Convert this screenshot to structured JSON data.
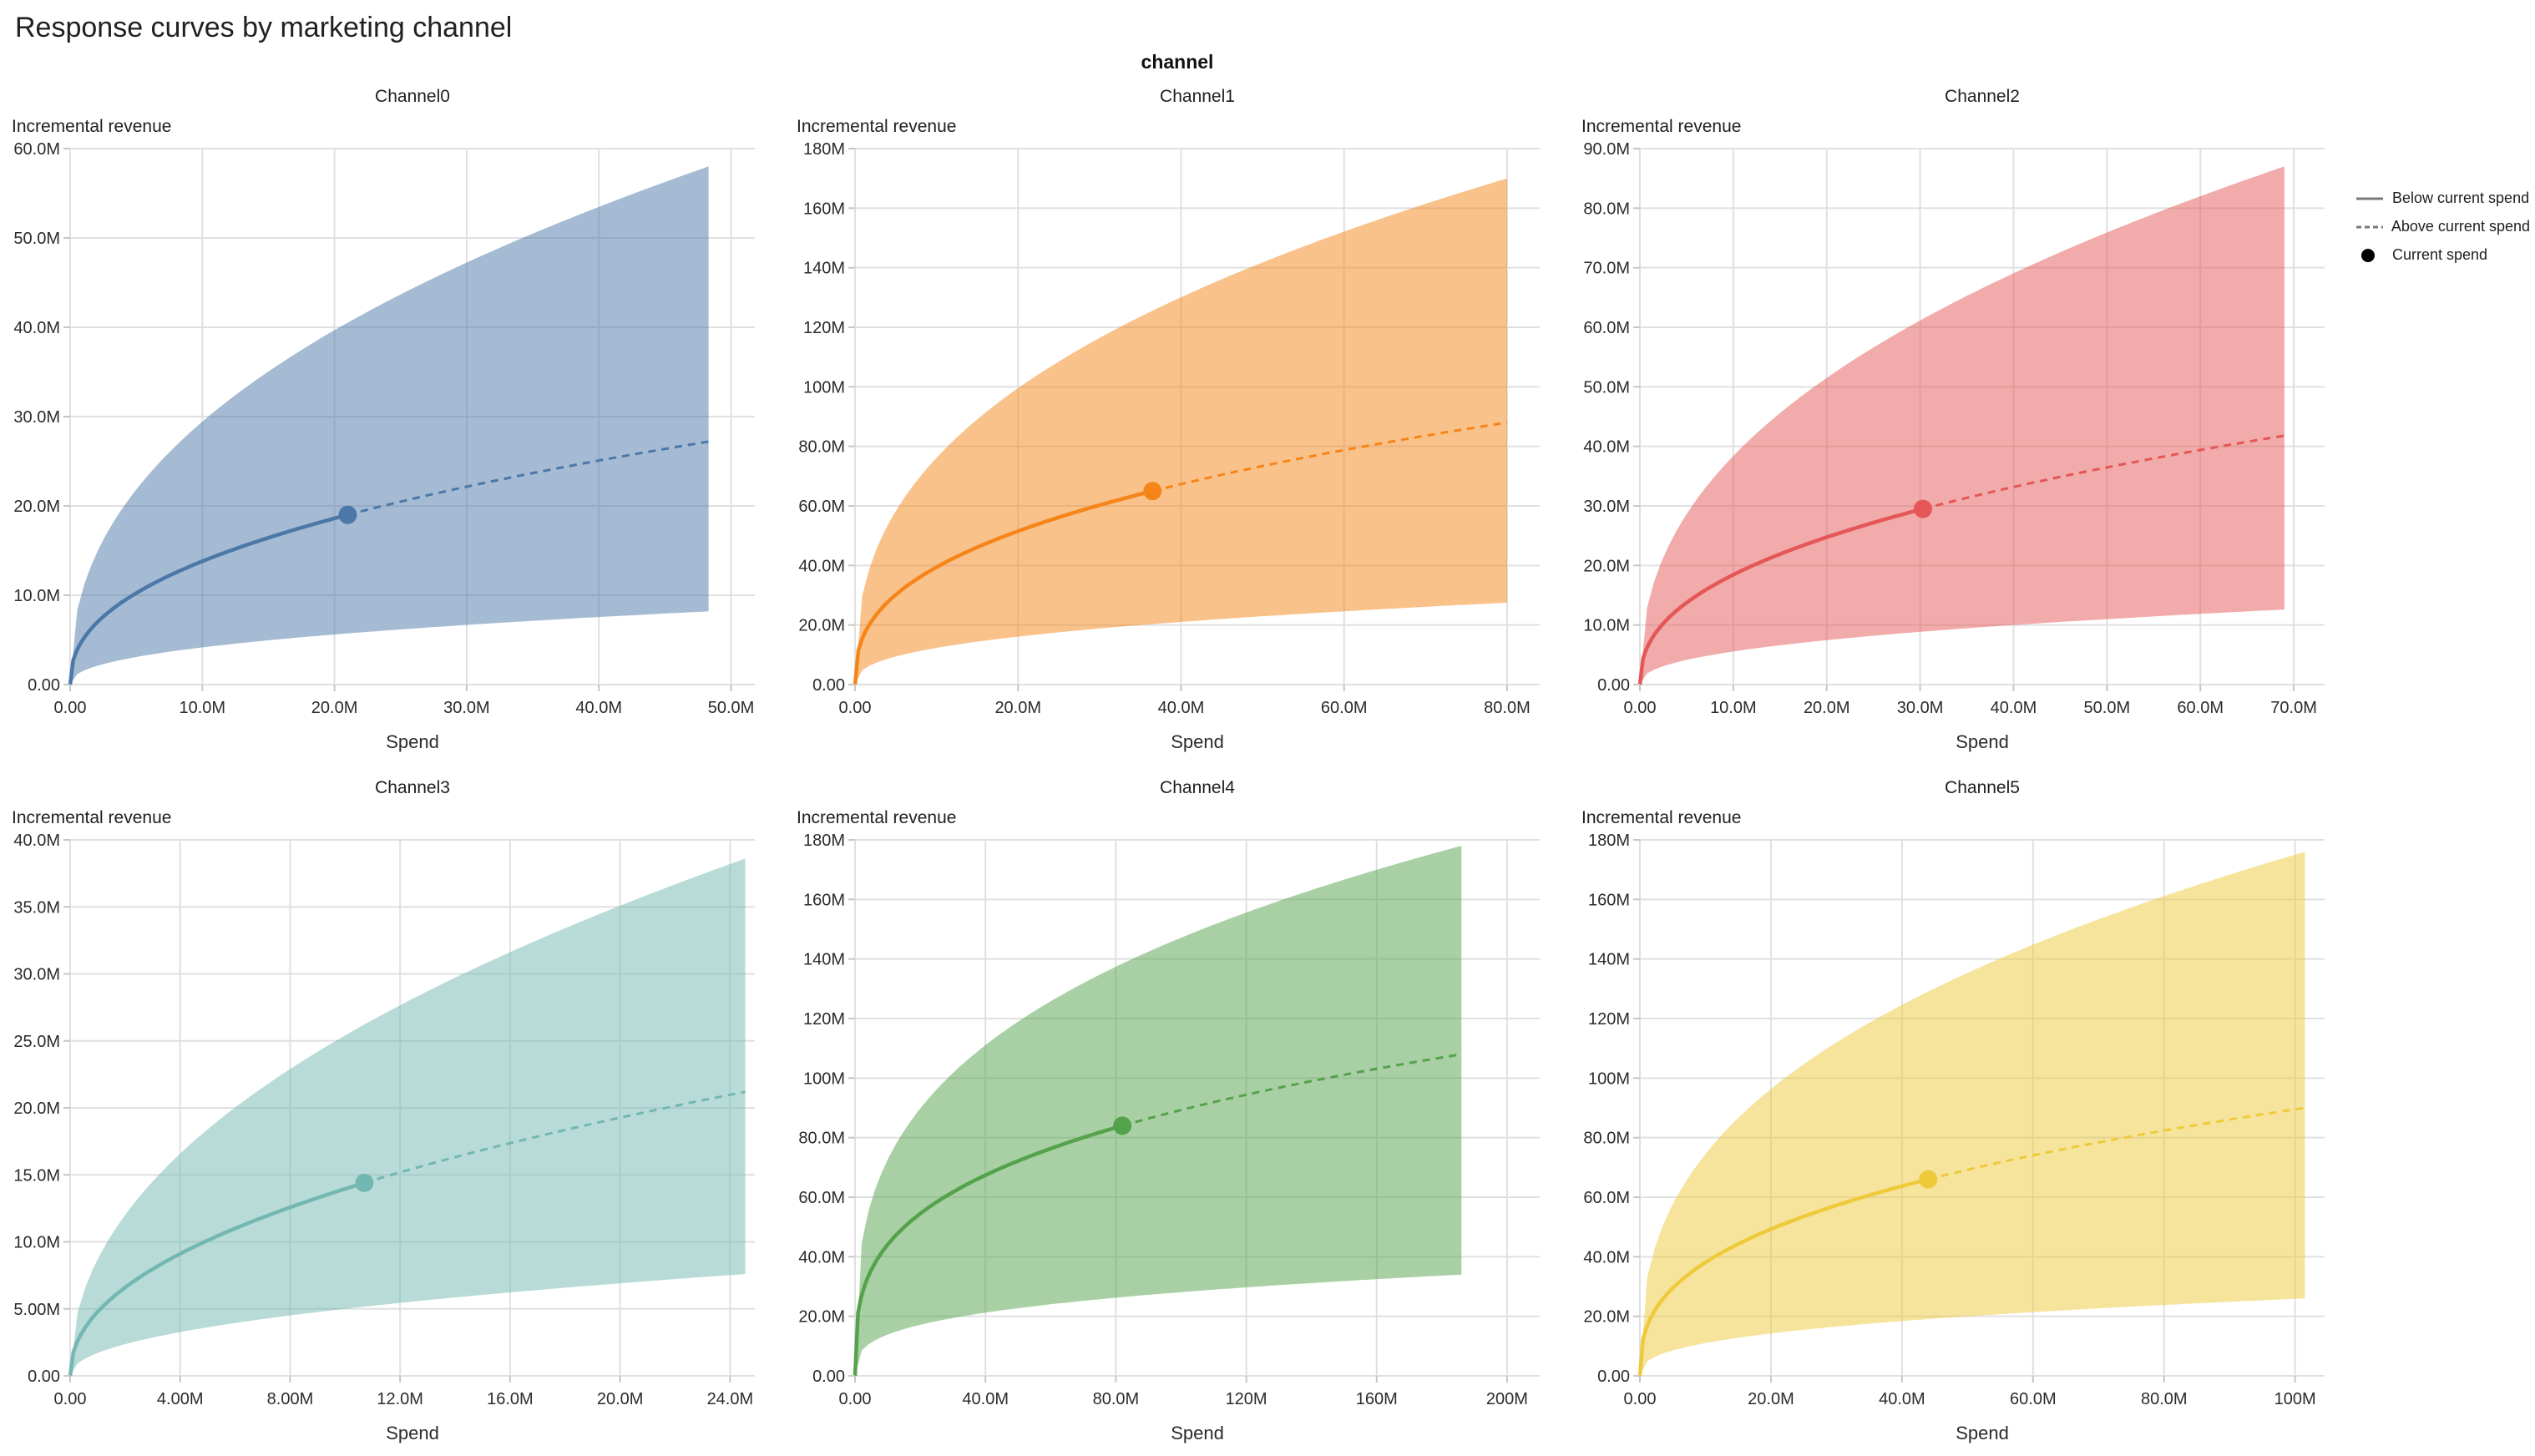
{
  "page": {
    "title": "Response curves by marketing channel",
    "facet_header": "channel"
  },
  "axes": {
    "x_label": "Spend",
    "y_label": "Incremental revenue"
  },
  "legend": {
    "items": [
      {
        "label": "Below current spend",
        "symbol": "solid-line"
      },
      {
        "label": "Above current spend",
        "symbol": "dashed-line"
      },
      {
        "label": "Current spend",
        "symbol": "dot"
      }
    ],
    "symbol_color": "#7a7a7a",
    "dot_color": "#000000"
  },
  "style": {
    "band_opacity": 0.5
  },
  "chart_data": [
    {
      "type": "line",
      "title": "Channel0",
      "color": "#4c78a8",
      "xlabel": "Spend",
      "ylabel": "Incremental revenue",
      "units": "millions",
      "curve_model": "power",
      "xlim": [
        0,
        51.8
      ],
      "ylim": [
        0,
        60
      ],
      "x_ticks": {
        "values": [
          0,
          10,
          20,
          30,
          40,
          50
        ],
        "labels": [
          "0.00",
          "10.0M",
          "20.0M",
          "30.0M",
          "40.0M",
          "50.0M"
        ]
      },
      "y_ticks": {
        "values": [
          0,
          10,
          20,
          30,
          40,
          50,
          60
        ],
        "labels": [
          "0.00",
          "10.0M",
          "20.0M",
          "30.0M",
          "40.0M",
          "50.0M",
          "60.0M"
        ]
      },
      "current_spend": {
        "x": 21,
        "y": 19
      },
      "curve_end": {
        "x": 48.3,
        "y": 27.2
      },
      "band": {
        "upper_end": 58,
        "lower_end": 8.2
      }
    },
    {
      "type": "line",
      "title": "Channel1",
      "color": "#f58518",
      "xlabel": "Spend",
      "ylabel": "Incremental revenue",
      "units": "millions",
      "curve_model": "power",
      "xlim": [
        0,
        84
      ],
      "ylim": [
        0,
        180
      ],
      "x_ticks": {
        "values": [
          0,
          20,
          40,
          60,
          80
        ],
        "labels": [
          "0.00",
          "20.0M",
          "40.0M",
          "60.0M",
          "80.0M"
        ]
      },
      "y_ticks": {
        "values": [
          0,
          20,
          40,
          60,
          80,
          100,
          120,
          140,
          160,
          180
        ],
        "labels": [
          "0.00",
          "20.0M",
          "40.0M",
          "60.0M",
          "80.0M",
          "100M",
          "120M",
          "140M",
          "160M",
          "180M"
        ]
      },
      "current_spend": {
        "x": 36.5,
        "y": 65
      },
      "curve_end": {
        "x": 80,
        "y": 88
      },
      "band": {
        "upper_end": 170,
        "lower_end": 27.5
      }
    },
    {
      "type": "line",
      "title": "Channel2",
      "color": "#e45756",
      "xlabel": "Spend",
      "ylabel": "Incremental revenue",
      "units": "millions",
      "curve_model": "power",
      "xlim": [
        0,
        73.3
      ],
      "ylim": [
        0,
        90
      ],
      "x_ticks": {
        "values": [
          0,
          10,
          20,
          30,
          40,
          50,
          60,
          70
        ],
        "labels": [
          "0.00",
          "10.0M",
          "20.0M",
          "30.0M",
          "40.0M",
          "50.0M",
          "60.0M",
          "70.0M"
        ]
      },
      "y_ticks": {
        "values": [
          0,
          10,
          20,
          30,
          40,
          50,
          60,
          70,
          80,
          90
        ],
        "labels": [
          "0.00",
          "10.0M",
          "20.0M",
          "30.0M",
          "40.0M",
          "50.0M",
          "60.0M",
          "70.0M",
          "80.0M",
          "90.0M"
        ]
      },
      "current_spend": {
        "x": 30.3,
        "y": 29.5
      },
      "curve_end": {
        "x": 69,
        "y": 41.8
      },
      "band": {
        "upper_end": 87,
        "lower_end": 12.6
      }
    },
    {
      "type": "line",
      "title": "Channel3",
      "color": "#72b7b2",
      "xlabel": "Spend",
      "ylabel": "Incremental revenue",
      "units": "millions",
      "curve_model": "power",
      "xlim": [
        0,
        24.9
      ],
      "ylim": [
        0,
        40
      ],
      "x_ticks": {
        "values": [
          0,
          4,
          8,
          12,
          16,
          20,
          24
        ],
        "labels": [
          "0.00",
          "4.00M",
          "8.00M",
          "12.0M",
          "16.0M",
          "20.0M",
          "24.0M"
        ]
      },
      "y_ticks": {
        "values": [
          0,
          5,
          10,
          15,
          20,
          25,
          30,
          35,
          40
        ],
        "labels": [
          "0.00",
          "5.00M",
          "10.0M",
          "15.0M",
          "20.0M",
          "25.0M",
          "30.0M",
          "35.0M",
          "40.0M"
        ]
      },
      "current_spend": {
        "x": 10.7,
        "y": 14.4
      },
      "curve_end": {
        "x": 24.55,
        "y": 21.2
      },
      "band": {
        "upper_end": 38.6,
        "lower_end": 7.6
      }
    },
    {
      "type": "line",
      "title": "Channel4",
      "color": "#54a24b",
      "xlabel": "Spend",
      "ylabel": "Incremental revenue",
      "units": "millions",
      "curve_model": "power",
      "xlim": [
        0,
        210
      ],
      "ylim": [
        0,
        180
      ],
      "x_ticks": {
        "values": [
          0,
          40,
          80,
          120,
          160,
          200
        ],
        "labels": [
          "0.00",
          "40.0M",
          "80.0M",
          "120M",
          "160M",
          "200M"
        ]
      },
      "y_ticks": {
        "values": [
          0,
          20,
          40,
          60,
          80,
          100,
          120,
          140,
          160,
          180
        ],
        "labels": [
          "0.00",
          "20.0M",
          "40.0M",
          "60.0M",
          "80.0M",
          "100M",
          "120M",
          "140M",
          "160M",
          "180M"
        ]
      },
      "current_spend": {
        "x": 82,
        "y": 84
      },
      "curve_end": {
        "x": 186,
        "y": 108
      },
      "band": {
        "upper_end": 178,
        "lower_end": 34
      }
    },
    {
      "type": "line",
      "title": "Channel5",
      "color": "#eeca3b",
      "xlabel": "Spend",
      "ylabel": "Incremental revenue",
      "units": "millions",
      "curve_model": "power",
      "xlim": [
        0,
        104.5
      ],
      "ylim": [
        0,
        180
      ],
      "x_ticks": {
        "values": [
          0,
          20,
          40,
          60,
          80,
          100
        ],
        "labels": [
          "0.00",
          "20.0M",
          "40.0M",
          "60.0M",
          "80.0M",
          "100M"
        ]
      },
      "y_ticks": {
        "values": [
          0,
          20,
          40,
          60,
          80,
          100,
          120,
          140,
          160,
          180
        ],
        "labels": [
          "0.00",
          "20.0M",
          "40.0M",
          "60.0M",
          "80.0M",
          "100M",
          "120M",
          "140M",
          "160M",
          "180M"
        ]
      },
      "current_spend": {
        "x": 44,
        "y": 66
      },
      "curve_end": {
        "x": 101.5,
        "y": 90
      },
      "band": {
        "upper_end": 176,
        "lower_end": 26
      }
    }
  ]
}
